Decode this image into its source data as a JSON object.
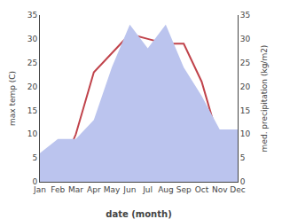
{
  "chart_data": {
    "type": "line",
    "categories": [
      "Jan",
      "Feb",
      "Mar",
      "Apr",
      "May",
      "Jun",
      "Jul",
      "Aug",
      "Sep",
      "Oct",
      "Nov",
      "Dec"
    ],
    "xlabel": "date (month)",
    "ylabel": "max temp (C)",
    "y2label": "med. precipitation (kg/m2)",
    "ylim": [
      0,
      35
    ],
    "yticks": [
      0,
      5,
      10,
      15,
      20,
      25,
      30,
      35
    ],
    "y2lim": [
      0,
      35
    ],
    "y2ticks": [
      0,
      5,
      10,
      15,
      20,
      25,
      30,
      35
    ],
    "grid": false,
    "series": [
      {
        "type": "area",
        "axis": "y2",
        "color": "#bbc4ee",
        "values": [
          6,
          9,
          9,
          13,
          24,
          33,
          28,
          33,
          24,
          18,
          11,
          11
        ]
      },
      {
        "type": "line",
        "color": "#c0434b",
        "values": [
          0,
          1,
          10,
          23,
          27,
          31,
          30,
          29,
          29,
          21,
          8,
          6
        ]
      }
    ]
  }
}
